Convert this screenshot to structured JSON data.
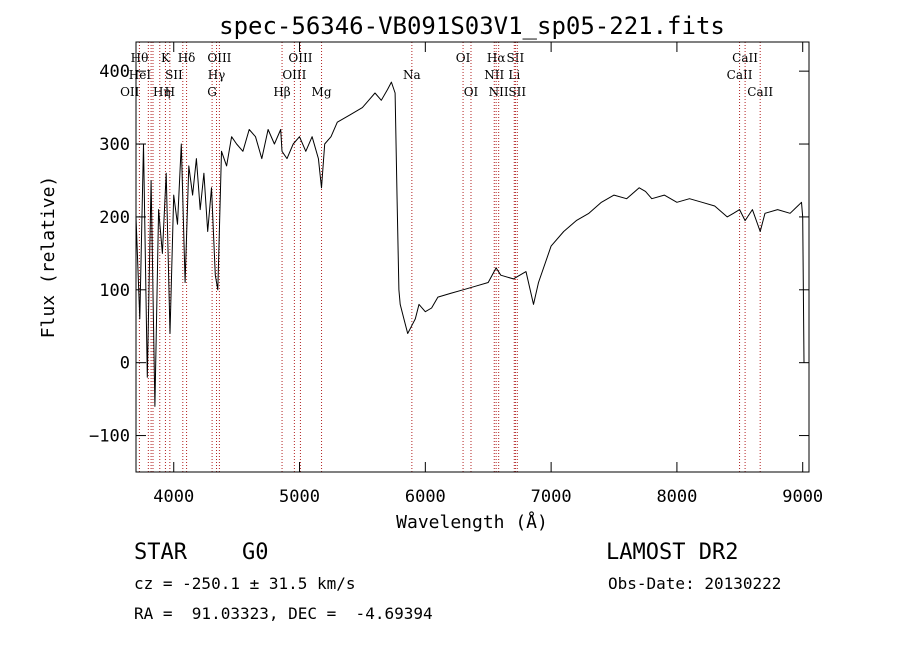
{
  "chart_data": {
    "type": "line",
    "title": "spec-56346-VB091S03V1_sp05-221.fits",
    "xlabel": "Wavelength (Å)",
    "ylabel": "Flux (relative)",
    "xlim": [
      3700,
      9050
    ],
    "ylim": [
      -150,
      440
    ],
    "x_ticks": [
      4000,
      5000,
      6000,
      7000,
      8000,
      9000
    ],
    "y_ticks": [
      -100,
      0,
      100,
      200,
      300,
      400
    ],
    "grid": false,
    "line_color": "#000000",
    "marker_color": "#b22222",
    "spectrum": {
      "x": [
        3700,
        3730,
        3760,
        3790,
        3820,
        3850,
        3880,
        3910,
        3940,
        3970,
        4000,
        4030,
        4060,
        4090,
        4120,
        4150,
        4180,
        4210,
        4240,
        4270,
        4300,
        4330,
        4350,
        4380,
        4420,
        4460,
        4500,
        4550,
        4600,
        4650,
        4700,
        4750,
        4800,
        4850,
        4861,
        4900,
        4950,
        5000,
        5050,
        5100,
        5150,
        5175,
        5200,
        5250,
        5300,
        5400,
        5500,
        5550,
        5600,
        5650,
        5700,
        5730,
        5760,
        5775,
        5790,
        5800,
        5830,
        5860,
        5890,
        5920,
        5950,
        6000,
        6050,
        6100,
        6200,
        6300,
        6400,
        6500,
        6563,
        6600,
        6700,
        6800,
        6860,
        6900,
        7000,
        7100,
        7200,
        7300,
        7400,
        7500,
        7600,
        7700,
        7750,
        7800,
        7900,
        8000,
        8100,
        8200,
        8300,
        8400,
        8450,
        8498,
        8542,
        8600,
        8662,
        8700,
        8800,
        8900,
        8960,
        8990,
        9000,
        9010
      ],
      "y": [
        200,
        60,
        300,
        -20,
        250,
        -60,
        210,
        150,
        260,
        40,
        230,
        190,
        300,
        110,
        270,
        230,
        280,
        210,
        260,
        180,
        240,
        120,
        100,
        290,
        270,
        310,
        300,
        290,
        320,
        310,
        280,
        320,
        300,
        320,
        290,
        280,
        300,
        310,
        290,
        310,
        280,
        240,
        300,
        310,
        330,
        340,
        350,
        360,
        370,
        360,
        375,
        385,
        370,
        230,
        100,
        80,
        60,
        40,
        50,
        60,
        80,
        70,
        75,
        90,
        95,
        100,
        105,
        110,
        130,
        120,
        115,
        125,
        80,
        110,
        160,
        180,
        195,
        205,
        220,
        230,
        225,
        240,
        235,
        225,
        230,
        220,
        225,
        220,
        215,
        200,
        205,
        210,
        195,
        210,
        180,
        205,
        210,
        205,
        215,
        220,
        200,
        0
      ]
    },
    "lines": [
      {
        "wl": 3798,
        "label": "Hθ",
        "row": 0,
        "anchor": "end"
      },
      {
        "wl": 3820,
        "label": "HeI",
        "row": 1,
        "anchor": "end"
      },
      {
        "wl": 3727,
        "label": "OII",
        "row": 2,
        "anchor": "end"
      },
      {
        "wl": 3835,
        "label": "Hη",
        "row": 2,
        "anchor": "start"
      },
      {
        "wl": 3889,
        "label": "",
        "row": 1,
        "anchor": "start"
      },
      {
        "wl": 3934,
        "label": "K",
        "row": 0,
        "anchor": "middle"
      },
      {
        "wl": 3969,
        "label": "H",
        "row": 2,
        "anchor": "middle"
      },
      {
        "wl": 4072,
        "label": "SII",
        "row": 1,
        "anchor": "end"
      },
      {
        "wl": 4102,
        "label": "Hδ",
        "row": 0,
        "anchor": "middle"
      },
      {
        "wl": 4305,
        "label": "G",
        "row": 2,
        "anchor": "middle"
      },
      {
        "wl": 4340,
        "label": "Hγ",
        "row": 1,
        "anchor": "middle"
      },
      {
        "wl": 4363,
        "label": "OIII",
        "row": 0,
        "anchor": "middle"
      },
      {
        "wl": 4861,
        "label": "Hβ",
        "row": 2,
        "anchor": "middle"
      },
      {
        "wl": 4959,
        "label": "OIII",
        "row": 1,
        "anchor": "middle"
      },
      {
        "wl": 5007,
        "label": "OIII",
        "row": 0,
        "anchor": "middle"
      },
      {
        "wl": 5175,
        "label": "Mg",
        "row": 2,
        "anchor": "middle"
      },
      {
        "wl": 5893,
        "label": "Na",
        "row": 1,
        "anchor": "middle"
      },
      {
        "wl": 6300,
        "label": "OI",
        "row": 0,
        "anchor": "middle"
      },
      {
        "wl": 6363,
        "label": "OI",
        "row": 2,
        "anchor": "middle"
      },
      {
        "wl": 6548,
        "label": "NII",
        "row": 1,
        "anchor": "middle"
      },
      {
        "wl": 6563,
        "label": "Hα",
        "row": 0,
        "anchor": "middle"
      },
      {
        "wl": 6583,
        "label": "NII",
        "row": 2,
        "anchor": "middle"
      },
      {
        "wl": 6707,
        "label": "Li",
        "row": 1,
        "anchor": "middle"
      },
      {
        "wl": 6716,
        "label": "SII",
        "row": 0,
        "anchor": "middle"
      },
      {
        "wl": 6731,
        "label": "SII",
        "row": 2,
        "anchor": "middle"
      },
      {
        "wl": 8498,
        "label": "CaII",
        "row": 1,
        "anchor": "middle"
      },
      {
        "wl": 8542,
        "label": "CaII",
        "row": 0,
        "anchor": "middle"
      },
      {
        "wl": 8662,
        "label": "CaII",
        "row": 2,
        "anchor": "middle"
      }
    ]
  },
  "info": {
    "class_label": "STAR",
    "subclass_label": "G0",
    "survey_label": "LAMOST DR2",
    "cz_text": "cz = -250.1 ± 31.5 km/s",
    "obsdate_text": "Obs-Date: 20130222",
    "coords_text": "RA =  91.03323, DEC =  -4.69394"
  }
}
